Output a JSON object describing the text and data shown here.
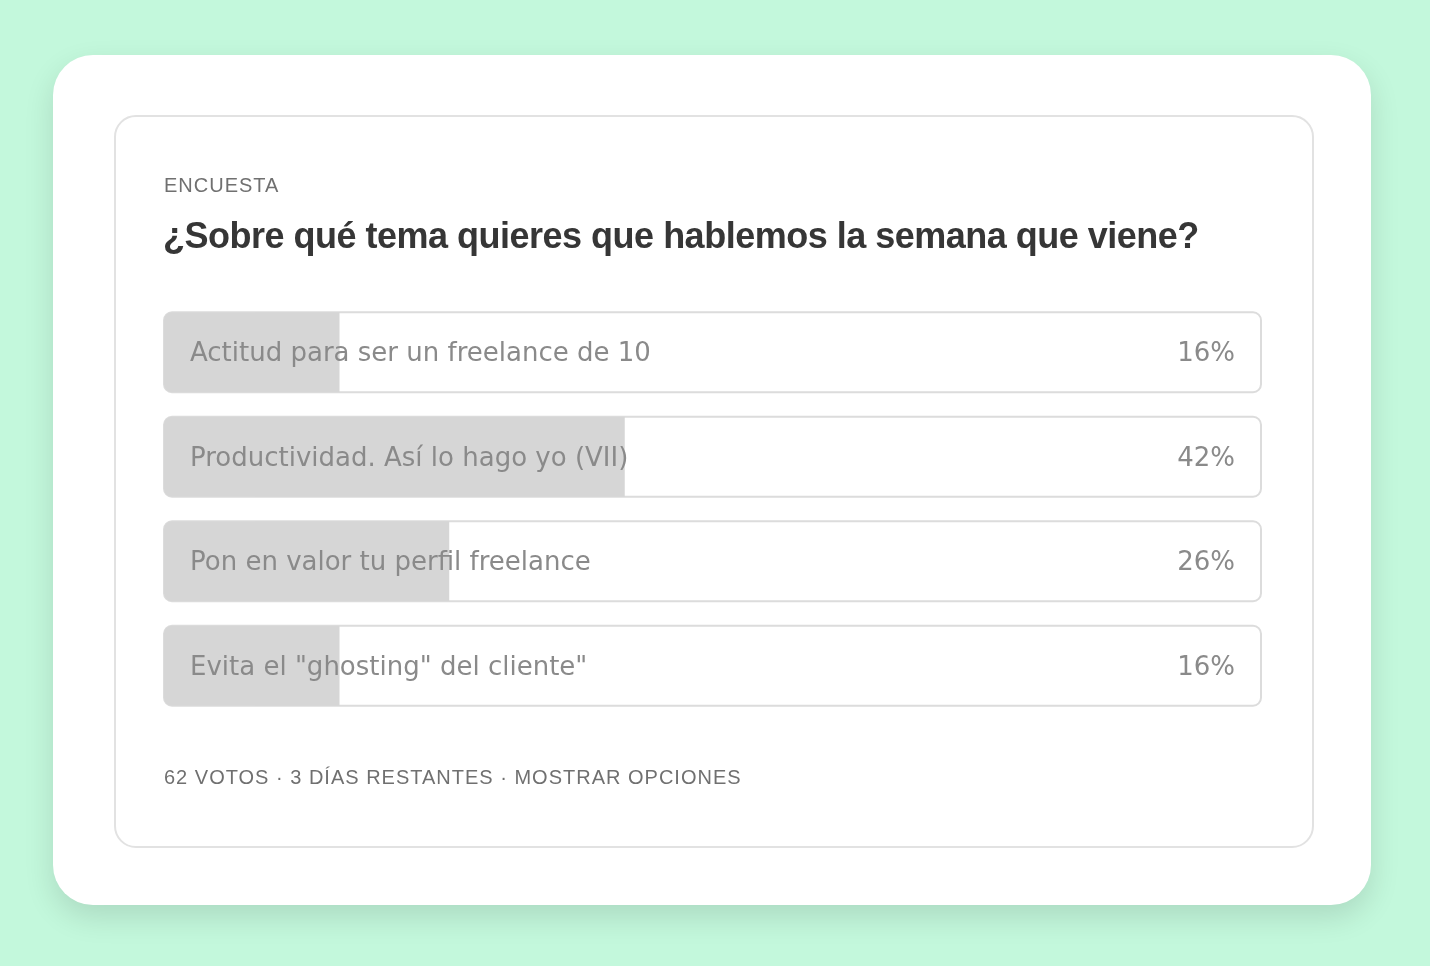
{
  "chart_data": {
    "type": "bar",
    "orientation": "horizontal",
    "subtitle": "ENCUESTA",
    "title": "¿Sobre qué tema quieres que hablemos la semana que viene?",
    "categories": [
      "Actitud para ser un freelance de 10",
      "Productividad. Así lo hago yo (VII)",
      "Pon en valor tu perfil freelance",
      "Evita el \"ghosting\" del cliente\""
    ],
    "values": [
      16,
      42,
      26,
      16
    ],
    "value_labels": [
      "16%",
      "42%",
      "26%",
      "16%"
    ],
    "color": "#d6d6d6",
    "xlim": [
      0,
      100
    ],
    "annotations": [
      "62 VOTOS · 3 DÍAS RESTANTES · MOSTRAR OPCIONES"
    ]
  }
}
